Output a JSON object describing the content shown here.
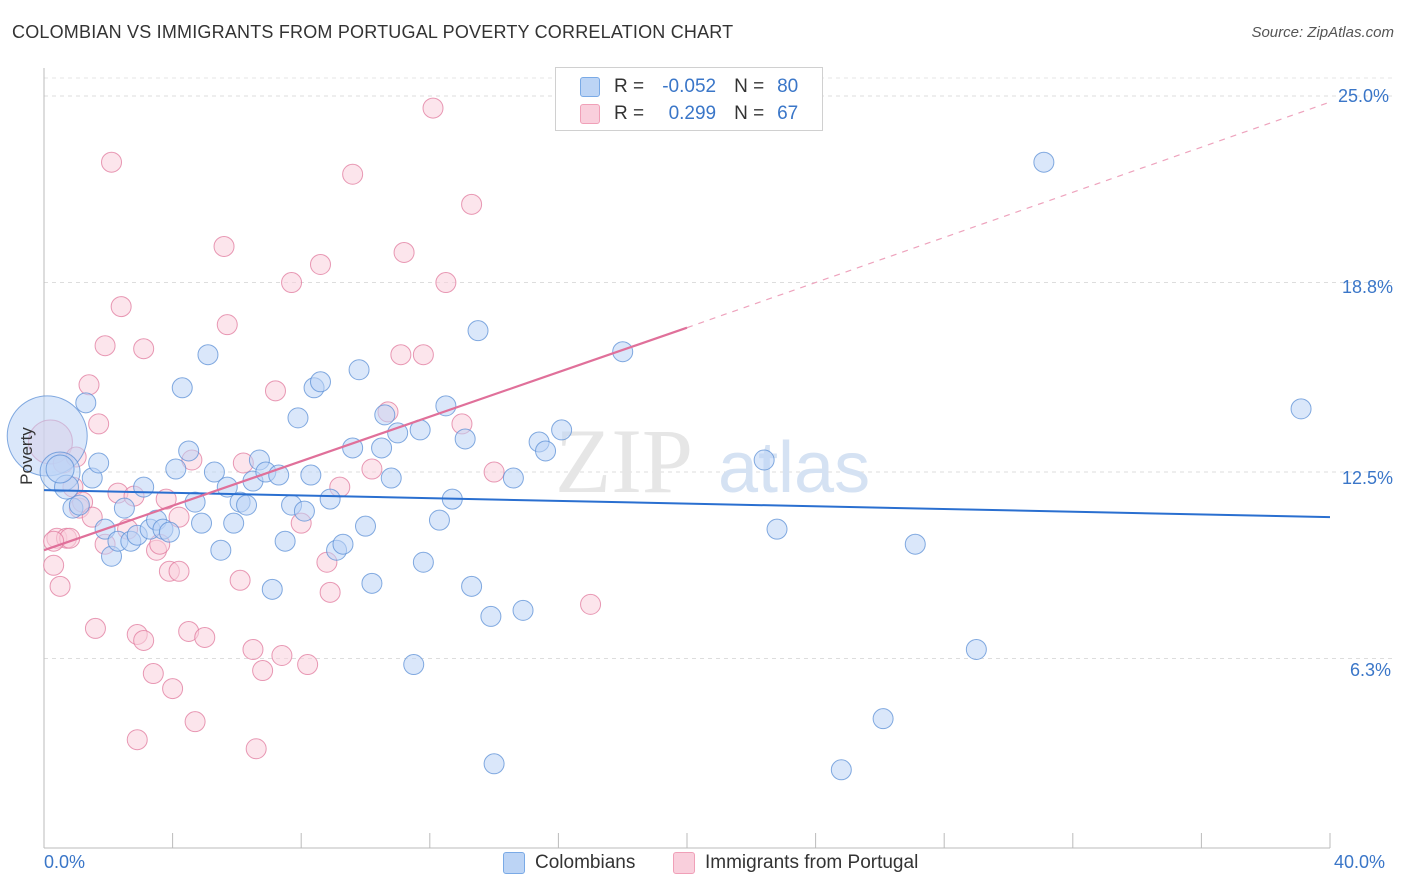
{
  "title": "COLOMBIAN VS IMMIGRANTS FROM PORTUGAL POVERTY CORRELATION CHART",
  "source": "Source: ZipAtlas.com",
  "watermark": {
    "zip": "ZIP",
    "atlas": "atlas"
  },
  "legend_top": {
    "rows": [
      {
        "r_label": "R =",
        "r_value": "-0.052",
        "n_label": "N =",
        "n_value": "80",
        "color": "#7aaae6",
        "fill": "#bcd4f5"
      },
      {
        "r_label": "R =",
        "r_value": "0.299",
        "n_label": "N =",
        "n_value": "67",
        "color": "#f0a0b8",
        "fill": "#f9cfdc"
      }
    ]
  },
  "legend_bottom": {
    "items": [
      {
        "label": "Colombians",
        "color": "#7aaae6",
        "fill": "#bcd4f5"
      },
      {
        "label": "Immigrants from Portugal",
        "color": "#f0a0b8",
        "fill": "#f9cfdc"
      }
    ]
  },
  "chart_data": {
    "type": "scatter",
    "title": "COLOMBIAN VS IMMIGRANTS FROM PORTUGAL POVERTY CORRELATION CHART",
    "xlabel": "",
    "ylabel": "Poverty",
    "xlim": [
      0,
      40
    ],
    "ylim": [
      0,
      25.6
    ],
    "x_tick_labels": [
      "0.0%",
      "40.0%"
    ],
    "y_ticks": [
      6.3,
      12.5,
      18.8,
      25.0
    ],
    "y_tick_labels": [
      "6.3%",
      "12.5%",
      "18.8%",
      "25.0%"
    ],
    "grid": "horizontal dashed",
    "legend_position": "top-center",
    "series": [
      {
        "name": "Colombians",
        "color": "#5b8fd6",
        "fill": "#bcd4f5",
        "trend": {
          "x": [
            0,
            40
          ],
          "y": [
            11.9,
            11.0
          ],
          "style": "solid"
        },
        "points": [
          [
            0.1,
            13.7
          ],
          [
            0.5,
            12.5
          ],
          [
            0.7,
            12.0
          ],
          [
            0.9,
            11.3
          ],
          [
            1.1,
            11.4
          ],
          [
            1.3,
            14.8
          ],
          [
            1.5,
            12.3
          ],
          [
            1.7,
            12.8
          ],
          [
            1.9,
            10.6
          ],
          [
            2.1,
            9.7
          ],
          [
            2.3,
            10.2
          ],
          [
            2.5,
            11.3
          ],
          [
            2.7,
            10.2
          ],
          [
            2.9,
            10.4
          ],
          [
            3.1,
            12.0
          ],
          [
            3.3,
            10.6
          ],
          [
            3.5,
            10.9
          ],
          [
            3.7,
            10.6
          ],
          [
            3.9,
            10.5
          ],
          [
            4.1,
            12.6
          ],
          [
            4.3,
            15.3
          ],
          [
            4.5,
            13.2
          ],
          [
            4.7,
            11.5
          ],
          [
            4.9,
            10.8
          ],
          [
            5.1,
            16.4
          ],
          [
            5.3,
            12.5
          ],
          [
            5.5,
            9.9
          ],
          [
            5.7,
            12.0
          ],
          [
            5.9,
            10.8
          ],
          [
            6.1,
            11.5
          ],
          [
            6.3,
            11.4
          ],
          [
            6.5,
            12.2
          ],
          [
            6.7,
            12.9
          ],
          [
            6.9,
            12.5
          ],
          [
            7.1,
            8.6
          ],
          [
            7.3,
            12.4
          ],
          [
            7.5,
            10.2
          ],
          [
            7.7,
            11.4
          ],
          [
            7.9,
            14.3
          ],
          [
            8.1,
            11.2
          ],
          [
            8.3,
            12.4
          ],
          [
            8.4,
            15.3
          ],
          [
            8.6,
            15.5
          ],
          [
            8.9,
            11.6
          ],
          [
            9.1,
            9.9
          ],
          [
            9.3,
            10.1
          ],
          [
            9.6,
            13.3
          ],
          [
            9.8,
            15.9
          ],
          [
            10.0,
            10.7
          ],
          [
            10.2,
            8.8
          ],
          [
            10.5,
            13.3
          ],
          [
            10.6,
            14.4
          ],
          [
            10.8,
            12.3
          ],
          [
            11.0,
            13.8
          ],
          [
            11.5,
            6.1
          ],
          [
            11.7,
            13.9
          ],
          [
            11.8,
            9.5
          ],
          [
            12.3,
            10.9
          ],
          [
            12.5,
            14.7
          ],
          [
            12.7,
            11.6
          ],
          [
            13.1,
            13.6
          ],
          [
            13.3,
            8.7
          ],
          [
            13.5,
            17.2
          ],
          [
            13.9,
            7.7
          ],
          [
            14.0,
            2.8
          ],
          [
            14.6,
            12.3
          ],
          [
            14.9,
            7.9
          ],
          [
            15.4,
            13.5
          ],
          [
            15.6,
            13.2
          ],
          [
            16.1,
            13.9
          ],
          [
            18.0,
            16.5
          ],
          [
            22.4,
            12.9
          ],
          [
            22.8,
            10.6
          ],
          [
            24.8,
            2.6
          ],
          [
            26.1,
            4.3
          ],
          [
            27.1,
            10.1
          ],
          [
            29.0,
            6.6
          ],
          [
            31.1,
            22.8
          ],
          [
            39.1,
            14.6
          ],
          [
            0.5,
            12.6
          ]
        ],
        "sizes": [
          40,
          20,
          12,
          10,
          10,
          10,
          10,
          10,
          10,
          10,
          10,
          10,
          10,
          10,
          10,
          10,
          10,
          10,
          10,
          10,
          10,
          10,
          10,
          10,
          10,
          10,
          10,
          10,
          10,
          10,
          10,
          10,
          10,
          10,
          10,
          10,
          10,
          10,
          10,
          10,
          10,
          10,
          10,
          10,
          10,
          10,
          10,
          10,
          10,
          10,
          10,
          10,
          10,
          10,
          10,
          10,
          10,
          10,
          10,
          10,
          10,
          10,
          10,
          10,
          10,
          10,
          10,
          10,
          10,
          10,
          10,
          10,
          10,
          10,
          10,
          10,
          10,
          10,
          10,
          14
        ]
      },
      {
        "name": "Immigrants from Portugal",
        "color": "#e0789c",
        "fill": "#f9cfdc",
        "trend": {
          "x": [
            0,
            20
          ],
          "y": [
            9.9,
            17.3
          ],
          "style": "solid"
        },
        "trend_extension": {
          "x": [
            20,
            40
          ],
          "y": [
            17.3,
            24.8
          ],
          "style": "dashed"
        },
        "points": [
          [
            0.2,
            13.5
          ],
          [
            0.3,
            9.4
          ],
          [
            0.4,
            10.3
          ],
          [
            0.5,
            8.7
          ],
          [
            0.7,
            10.3
          ],
          [
            0.8,
            10.3
          ],
          [
            0.9,
            12.0
          ],
          [
            1.1,
            11.3
          ],
          [
            1.2,
            11.5
          ],
          [
            1.4,
            15.4
          ],
          [
            1.5,
            11.0
          ],
          [
            1.6,
            7.3
          ],
          [
            1.7,
            14.1
          ],
          [
            1.9,
            10.1
          ],
          [
            1.9,
            16.7
          ],
          [
            2.1,
            22.8
          ],
          [
            2.3,
            11.8
          ],
          [
            2.4,
            18.0
          ],
          [
            2.6,
            10.6
          ],
          [
            2.8,
            11.7
          ],
          [
            2.9,
            3.6
          ],
          [
            2.9,
            7.1
          ],
          [
            3.1,
            6.9
          ],
          [
            3.1,
            16.6
          ],
          [
            3.4,
            5.8
          ],
          [
            3.5,
            9.9
          ],
          [
            3.6,
            10.1
          ],
          [
            3.8,
            11.6
          ],
          [
            3.9,
            9.2
          ],
          [
            4.0,
            5.3
          ],
          [
            4.2,
            11.0
          ],
          [
            4.2,
            9.2
          ],
          [
            4.5,
            7.2
          ],
          [
            4.6,
            12.9
          ],
          [
            4.7,
            4.2
          ],
          [
            5.0,
            7.0
          ],
          [
            5.6,
            20.0
          ],
          [
            5.7,
            17.4
          ],
          [
            6.1,
            8.9
          ],
          [
            6.2,
            12.8
          ],
          [
            6.5,
            6.6
          ],
          [
            6.6,
            3.3
          ],
          [
            6.8,
            5.9
          ],
          [
            7.2,
            15.2
          ],
          [
            7.4,
            6.4
          ],
          [
            7.7,
            18.8
          ],
          [
            8.0,
            10.8
          ],
          [
            8.2,
            6.1
          ],
          [
            8.6,
            19.4
          ],
          [
            8.8,
            9.5
          ],
          [
            8.9,
            8.5
          ],
          [
            9.2,
            12.0
          ],
          [
            9.6,
            22.4
          ],
          [
            10.2,
            12.6
          ],
          [
            10.7,
            14.5
          ],
          [
            11.1,
            16.4
          ],
          [
            11.2,
            19.8
          ],
          [
            11.8,
            16.4
          ],
          [
            12.1,
            24.6
          ],
          [
            12.5,
            18.8
          ],
          [
            13.0,
            14.1
          ],
          [
            13.3,
            21.4
          ],
          [
            14.0,
            12.5
          ],
          [
            17.0,
            8.1
          ],
          [
            0.3,
            10.2
          ],
          [
            0.6,
            12.8
          ],
          [
            1.0,
            13.0
          ]
        ],
        "sizes": [
          22,
          10,
          10,
          10,
          10,
          10,
          10,
          10,
          10,
          10,
          10,
          10,
          10,
          10,
          10,
          10,
          10,
          10,
          10,
          10,
          10,
          10,
          10,
          10,
          10,
          10,
          10,
          10,
          10,
          10,
          10,
          10,
          10,
          10,
          10,
          10,
          10,
          10,
          10,
          10,
          10,
          10,
          10,
          10,
          10,
          10,
          10,
          10,
          10,
          10,
          10,
          10,
          10,
          10,
          10,
          10,
          10,
          10,
          10,
          10,
          10,
          10,
          10,
          10,
          10,
          10,
          10
        ]
      }
    ]
  }
}
